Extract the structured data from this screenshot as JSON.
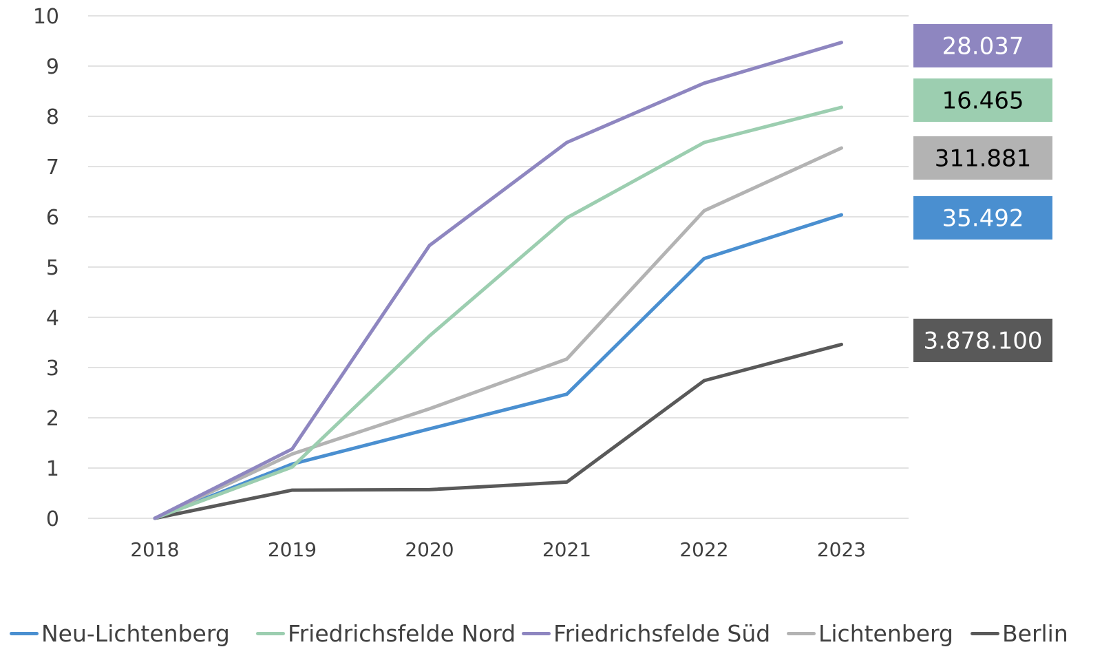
{
  "chart_data": {
    "type": "line",
    "categories": [
      "2018",
      "2019",
      "2020",
      "2021",
      "2022",
      "2023"
    ],
    "ylim": [
      0,
      10
    ],
    "yticks": [
      0,
      1,
      2,
      3,
      4,
      5,
      6,
      7,
      8,
      9,
      10
    ],
    "grid": true,
    "legend_position": "bottom",
    "series": [
      {
        "name": "Neu-Lichtenberg",
        "color": "#4a8fd0",
        "values": [
          0,
          1.08,
          1.78,
          2.47,
          5.17,
          6.04
        ],
        "end_label": "35.492",
        "end_label_text_color": "#ffffff"
      },
      {
        "name": "Friedrichsfelde Nord",
        "color": "#9cceb0",
        "values": [
          0,
          1.02,
          3.63,
          5.98,
          7.48,
          8.18
        ],
        "end_label": "16.465",
        "end_label_text_color": "#000000"
      },
      {
        "name": "Friedrichsfelde Süd",
        "color": "#8e86c0",
        "values": [
          0,
          1.38,
          5.43,
          7.48,
          8.66,
          9.47
        ],
        "end_label": "28.037",
        "end_label_text_color": "#ffffff"
      },
      {
        "name": "Lichtenberg",
        "color": "#b3b3b3",
        "values": [
          0,
          1.28,
          2.18,
          3.17,
          6.12,
          7.37
        ],
        "end_label": "311.881",
        "end_label_text_color": "#000000"
      },
      {
        "name": "Berlin",
        "color": "#595959",
        "values": [
          0,
          0.56,
          0.57,
          0.72,
          2.74,
          3.46
        ],
        "end_label": "3.878.100",
        "end_label_text_color": "#ffffff"
      }
    ]
  }
}
